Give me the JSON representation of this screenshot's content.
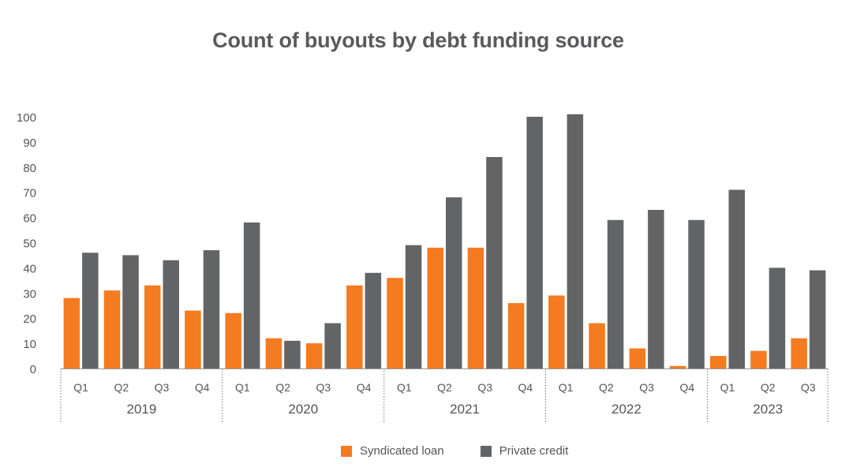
{
  "colors": {
    "syndicated": "#f47b20",
    "private": "#636466",
    "text": "#555555",
    "axis": "#999999"
  },
  "chart_data": {
    "type": "bar",
    "title": "Count of buyouts by debt funding source",
    "xlabel": "",
    "ylabel": "",
    "ylim": [
      0,
      100
    ],
    "yticks": [
      0,
      10,
      20,
      30,
      40,
      50,
      60,
      70,
      80,
      90,
      100
    ],
    "categories": [
      "Q1",
      "Q2",
      "Q3",
      "Q4",
      "Q1",
      "Q2",
      "Q3",
      "Q4",
      "Q1",
      "Q2",
      "Q3",
      "Q4",
      "Q1",
      "Q2",
      "Q3",
      "Q4",
      "Q1",
      "Q2",
      "Q3"
    ],
    "groups": [
      {
        "label": "2019",
        "count": 4
      },
      {
        "label": "2020",
        "count": 4
      },
      {
        "label": "2021",
        "count": 4
      },
      {
        "label": "2022",
        "count": 4
      },
      {
        "label": "2023",
        "count": 3
      }
    ],
    "series": [
      {
        "name": "Syndicated loan",
        "values": [
          28,
          31,
          33,
          23,
          22,
          12,
          10,
          33,
          36,
          48,
          48,
          26,
          29,
          18,
          8,
          1,
          5,
          7,
          12
        ]
      },
      {
        "name": "Private credit",
        "values": [
          46,
          45,
          43,
          47,
          58,
          11,
          18,
          38,
          49,
          68,
          84,
          100,
          101,
          59,
          63,
          59,
          71,
          40,
          39
        ]
      }
    ],
    "legend": "bottom-center"
  }
}
